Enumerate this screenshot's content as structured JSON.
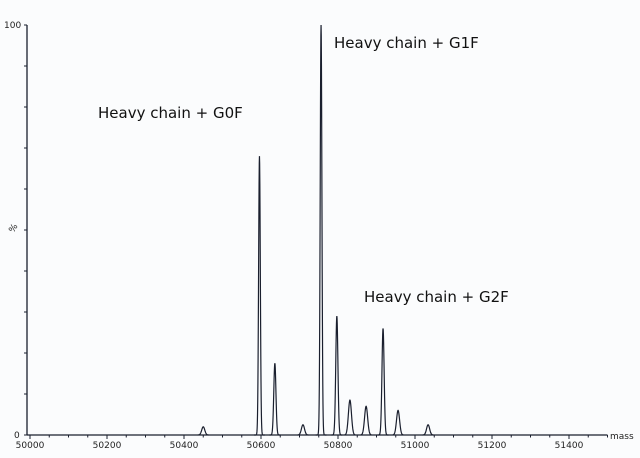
{
  "chart_data": {
    "type": "line",
    "title": "",
    "xlabel": "mass",
    "ylabel": "%",
    "xlim": [
      50000,
      51500
    ],
    "ylim": [
      0,
      100
    ],
    "x_ticks": [
      50000,
      50200,
      50400,
      50600,
      50800,
      51000,
      51200,
      51400
    ],
    "x_tick_labels": [
      "50000",
      "50200",
      "50400",
      "50600",
      "50800",
      "51000",
      "51200",
      "51400"
    ],
    "y_tick_labels": [
      "0",
      "100"
    ],
    "grid": false,
    "line_color": "#1a1f2e",
    "peaks": [
      {
        "mass": 50450,
        "intensity": 2
      },
      {
        "mass": 50596,
        "intensity": 68
      },
      {
        "mass": 50636,
        "intensity": 17.5
      },
      {
        "mass": 50709,
        "intensity": 2.5
      },
      {
        "mass": 50756,
        "intensity": 100
      },
      {
        "mass": 50797,
        "intensity": 29
      },
      {
        "mass": 50831,
        "intensity": 8.5
      },
      {
        "mass": 50873,
        "intensity": 7
      },
      {
        "mass": 50917,
        "intensity": 26
      },
      {
        "mass": 50956,
        "intensity": 6
      },
      {
        "mass": 51034,
        "intensity": 2.5
      }
    ],
    "annotations": [
      {
        "text": "Heavy chain + G0F",
        "mass": 50596
      },
      {
        "text": "Heavy chain + G1F",
        "mass": 50756
      },
      {
        "text": "Heavy chain + G2F",
        "mass": 50917
      }
    ]
  }
}
